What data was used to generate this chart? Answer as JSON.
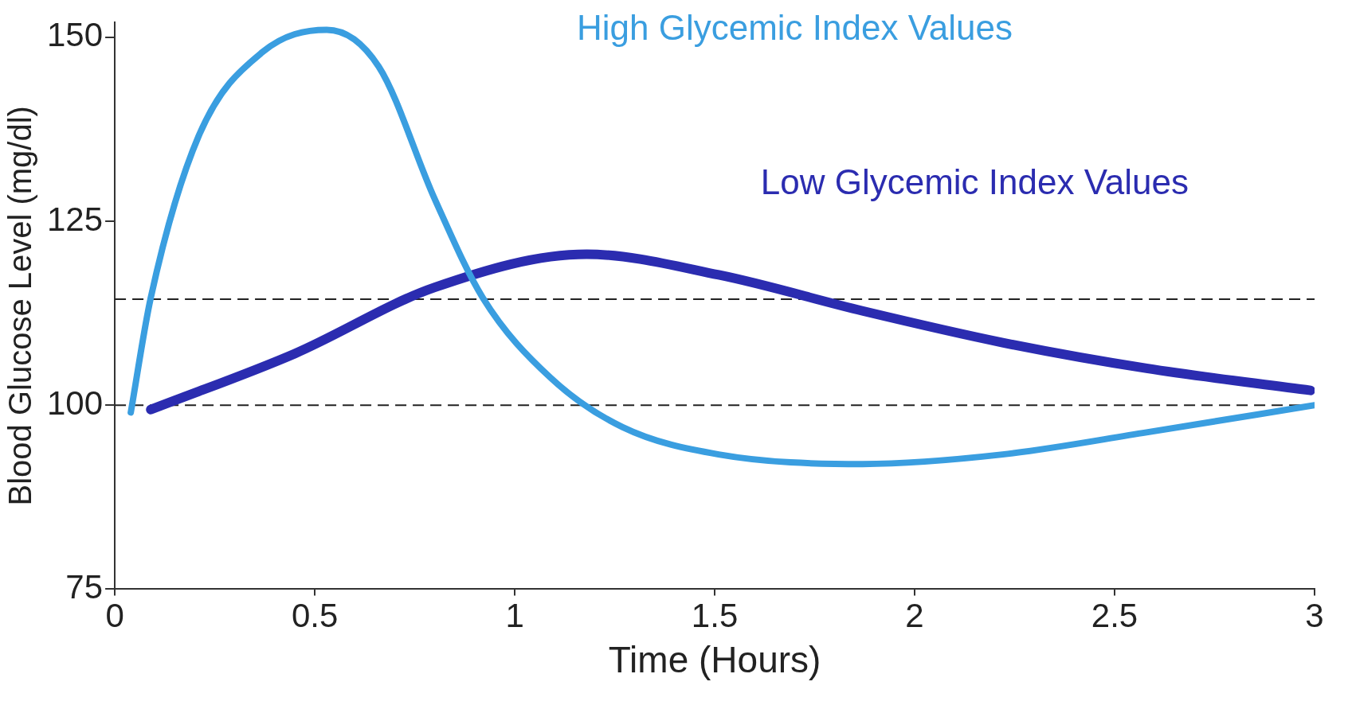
{
  "chart_data": {
    "type": "line",
    "xlabel": "Time (Hours)",
    "ylabel": "Blood Glucose Level (mg/dl)",
    "xlim": [
      0,
      3
    ],
    "xticks": [
      0,
      0.5,
      1,
      1.5,
      2,
      2.5,
      3
    ],
    "ylim": [
      75,
      152
    ],
    "yticks": [
      75,
      100,
      125,
      150
    ],
    "grid": false,
    "legend": false,
    "marker": "none",
    "line_style": "solid",
    "series": [
      {
        "name": "High Glycemic Index Values",
        "color": "#3a9ee0",
        "x": [
          0.04,
          0.09,
          0.21,
          0.37,
          0.53,
          0.66,
          0.8,
          0.92,
          1.09,
          1.27,
          1.51,
          1.87,
          2.22,
          2.58,
          3
        ],
        "values": [
          99,
          114.6,
          136.6,
          148,
          151,
          146,
          128,
          114.6,
          103.7,
          97,
          93.3,
          92,
          93.3,
          96.3,
          100
        ]
      },
      {
        "name": "Low Glycemic Index Values",
        "color": "#2b2cb0",
        "x": [
          0.09,
          0.45,
          0.8,
          1.18,
          1.51,
          1.87,
          2.22,
          2.58,
          2.99
        ],
        "values": [
          99.4,
          107,
          116,
          120.5,
          117.7,
          112.8,
          108.5,
          105,
          102
        ]
      }
    ],
    "ref_lines": [
      {
        "axis": "y",
        "value": 100,
        "line_style": "dashed",
        "color": "#222222"
      },
      {
        "axis": "y",
        "value": 114.4,
        "line_style": "dashed",
        "color": "#222222"
      }
    ]
  }
}
